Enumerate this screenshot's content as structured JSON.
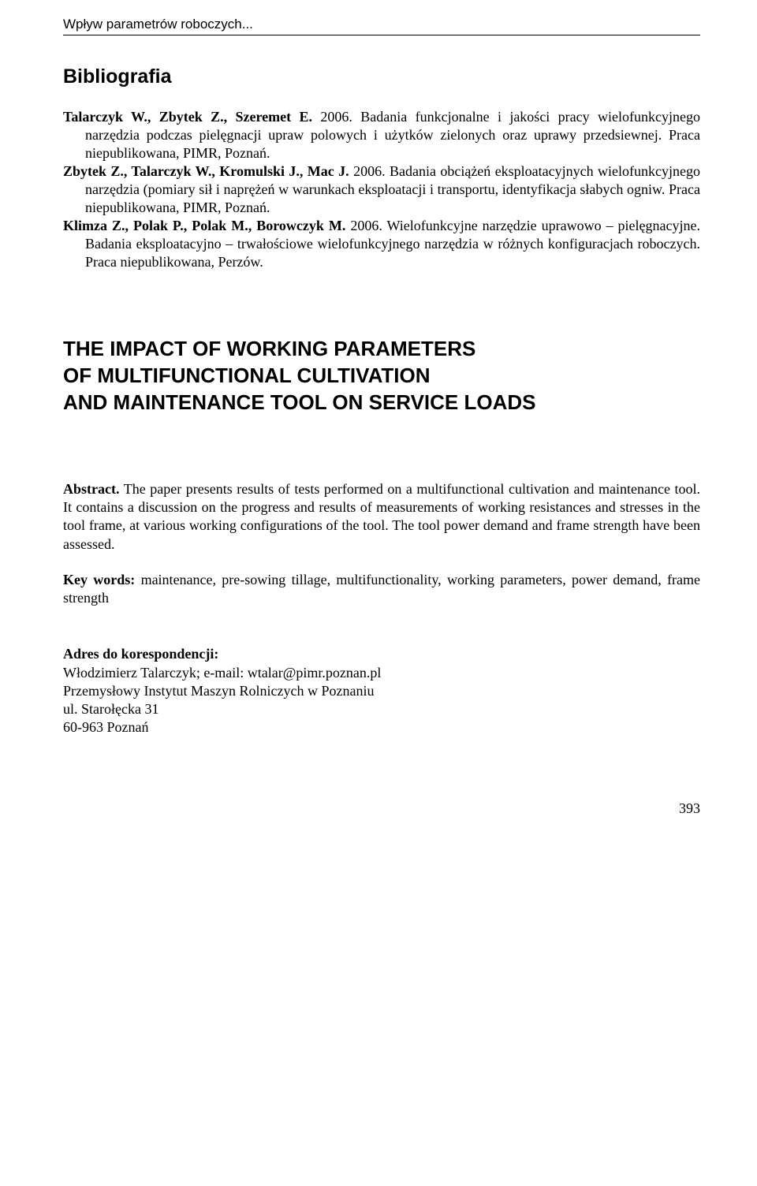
{
  "header": {
    "running_head": "Wpływ parametrów roboczych..."
  },
  "bibliography": {
    "heading": "Bibliografia",
    "entries": [
      {
        "authors": "Talarczyk W., Zbytek Z., Szeremet E.",
        "rest": " 2006. Badania funkcjonalne i jakości pracy wielofunkcyjnego narzędzia podczas pielęgnacji upraw polowych i użytków zielonych oraz uprawy przedsiewnej. Praca niepublikowana, PIMR, Poznań."
      },
      {
        "authors": "Zbytek Z., Talarczyk W., Kromulski J., Mac J.",
        "rest": " 2006. Badania obciążeń eksploatacyjnych wielofunkcyjnego narzędzia (pomiary sił i naprężeń w warunkach eksploatacji i transportu, identyfikacja słabych ogniw. Praca niepublikowana, PIMR, Poznań."
      },
      {
        "authors": "Klimza Z., Polak P., Polak M., Borowczyk M.",
        "rest": " 2006. Wielofunkcyjne narzędzie uprawowo – pielęgnacyjne. Badania eksploatacyjno – trwałościowe wielofunkcyjnego narzędzia w różnych konfiguracjach roboczych. Praca niepublikowana, Perzów."
      }
    ]
  },
  "english_title": {
    "line1": "THE IMPACT OF WORKING PARAMETERS",
    "line2": "OF MULTIFUNCTIONAL CULTIVATION",
    "line3": "AND MAINTENANCE TOOL ON SERVICE LOADS"
  },
  "abstract": {
    "lead": "Abstract.",
    "body": " The paper presents results of tests performed on a multifunctional cultivation and maintenance tool. It contains a discussion on the progress and results of measurements of working resistances and stresses in the tool frame, at various working configurations of the tool. The tool power demand and frame strength have been assessed."
  },
  "keywords": {
    "lead": "Key words:",
    "body": " maintenance, pre-sowing tillage, multifunctionality, working parameters, power demand, frame strength"
  },
  "correspondence": {
    "heading": "Adres do korespondencji:",
    "line1": "Włodzimierz Talarczyk; e-mail: wtalar@pimr.poznan.pl",
    "line2": "Przemysłowy Instytut Maszyn Rolniczych w Poznaniu",
    "line3": "ul. Starołęcka 31",
    "line4": "60-963 Poznań"
  },
  "page_number": "393",
  "colors": {
    "text": "#000000",
    "background": "#ffffff",
    "rule": "#000000"
  },
  "typography": {
    "body_family": "Times New Roman",
    "heading_family": "Arial",
    "body_size_pt": 13,
    "heading_size_pt": 18,
    "english_title_size_pt": 19
  }
}
